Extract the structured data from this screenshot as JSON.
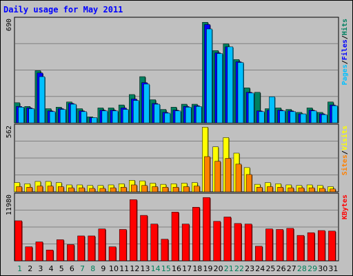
{
  "chart_data": {
    "title": "Daily usage for May 2011",
    "type": "bar",
    "categories": [
      "1",
      "2",
      "3",
      "4",
      "5",
      "6",
      "7",
      "8",
      "9",
      "10",
      "11",
      "12",
      "13",
      "14",
      "15",
      "16",
      "17",
      "18",
      "19",
      "20",
      "21",
      "22",
      "23",
      "24",
      "25",
      "26",
      "27",
      "28",
      "29",
      "30",
      "31"
    ],
    "weekend_days": [
      "1",
      "7",
      "8",
      "14",
      "15",
      "21",
      "22",
      "28",
      "29"
    ],
    "panels": [
      {
        "scale_label": "690",
        "ymax": 690,
        "axis_title": [
          {
            "text": "Pages",
            "color": "#00c0ff"
          },
          {
            "text": "/",
            "color": "#000000"
          },
          {
            "text": "Files",
            "color": "#0000ff"
          },
          {
            "text": "/",
            "color": "#000000"
          },
          {
            "text": "Hits",
            "color": "#008060"
          }
        ],
        "series": [
          {
            "name": "Hits",
            "color": "#008060",
            "values": [
              135,
              110,
              350,
              95,
              105,
              140,
              95,
              40,
              100,
              100,
              120,
              190,
              310,
              155,
              90,
              105,
              125,
              125,
              675,
              485,
              530,
              425,
              235,
              205,
              95,
              100,
              90,
              70,
              100,
              70,
              140
            ]
          },
          {
            "name": "Files",
            "color": "#0000ff",
            "values": [
              110,
              100,
              335,
              80,
              95,
              130,
              80,
              35,
              85,
              85,
              100,
              160,
              270,
              130,
              70,
              85,
              110,
              115,
              660,
              470,
              510,
              410,
              205,
              80,
              85,
              85,
              80,
              60,
              85,
              60,
              120
            ]
          },
          {
            "name": "Pages",
            "color": "#00c0ff",
            "values": [
              105,
              95,
              310,
              75,
              90,
              125,
              75,
              35,
              80,
              80,
              90,
              150,
              260,
              125,
              65,
              80,
              105,
              110,
              630,
              465,
              510,
              405,
              200,
              75,
              175,
              80,
              75,
              60,
              80,
              55,
              115
            ]
          }
        ]
      },
      {
        "scale_label": "562",
        "ymax": 562,
        "axis_title": [
          {
            "text": "Sites",
            "color": "#ff8000"
          },
          {
            "text": "/",
            "color": "#000000"
          },
          {
            "text": "Visits",
            "color": "#ffff00"
          }
        ],
        "series": [
          {
            "name": "Visits",
            "color": "#ffff00",
            "values": [
              80,
              70,
              90,
              90,
              80,
              60,
              60,
              55,
              55,
              60,
              70,
              100,
              95,
              75,
              65,
              70,
              75,
              80,
              560,
              390,
              470,
              335,
              210,
              65,
              80,
              70,
              60,
              55,
              60,
              55,
              45
            ]
          },
          {
            "name": "Sites",
            "color": "#ff8000",
            "values": [
              45,
              40,
              50,
              50,
              45,
              35,
              35,
              30,
              30,
              35,
              40,
              60,
              55,
              45,
              40,
              40,
              45,
              50,
              305,
              265,
              290,
              240,
              150,
              40,
              45,
              40,
              35,
              35,
              35,
              30,
              25
            ]
          }
        ]
      },
      {
        "scale_label": "11980",
        "ymax": 11980,
        "axis_title": [
          {
            "text": "KBytes",
            "color": "#ff0000"
          }
        ],
        "series": [
          {
            "name": "KBytes",
            "color": "#ff0000",
            "values": [
              7400,
              2600,
              3500,
              2000,
              3900,
              3000,
              4600,
              4600,
              5900,
              2600,
              5800,
              11300,
              8400,
              6800,
              4000,
              9000,
              6800,
              9900,
              11700,
              7300,
              8100,
              6900,
              6800,
              2700,
              5900,
              5800,
              6000,
              4700,
              5200,
              5600,
              5500
            ]
          }
        ]
      }
    ]
  }
}
